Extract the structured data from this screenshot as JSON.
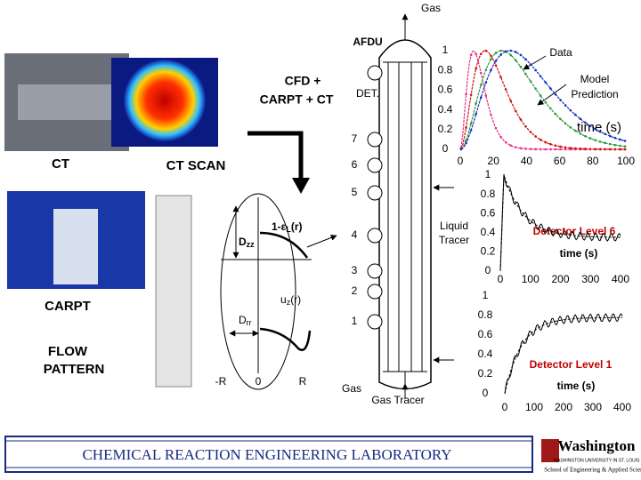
{
  "header": {
    "gas_top": "Gas",
    "afdu": "AFDU",
    "cfd": [
      "CFD +",
      "CARPT + CT"
    ],
    "det": "DET."
  },
  "left": {
    "ct": "CT",
    "ct_scan": "CT SCAN",
    "carpt": "CARPT",
    "flow_pattern": [
      "FLOW",
      "PATTERN"
    ]
  },
  "column": {
    "detectors": [
      "7",
      "6",
      "5",
      "4",
      "3",
      "2",
      "1"
    ],
    "liquid_tracer": [
      "Liquid",
      "Tracer"
    ],
    "gas_bottom": "Gas",
    "gas_tracer": "Gas Tracer"
  },
  "profile": {
    "holdup": [
      "1-ε",
      "L",
      "(r)"
    ],
    "dzz": [
      "D",
      "zz"
    ],
    "uz": [
      "u",
      "z",
      "(r)"
    ],
    "drr": [
      "D",
      "rr"
    ],
    "axis": [
      "-R",
      "0",
      "R"
    ]
  },
  "response_chart": {
    "data": "Data",
    "model": [
      "Model",
      "Prediction"
    ],
    "time": "time (s)",
    "yticks": [
      "1",
      "0.8",
      "0.6",
      "0.4",
      "0.2",
      "0"
    ],
    "xticks": [
      "0",
      "20",
      "40",
      "60",
      "80",
      "100"
    ]
  },
  "detector6": {
    "label": "Detector Level 6",
    "time": "time (s)",
    "yticks": [
      "1",
      "0.8",
      "0.6",
      "0.4",
      "0.2",
      "0"
    ],
    "xticks": [
      "0",
      "100",
      "200",
      "300",
      "400"
    ]
  },
  "detector1": {
    "label": "Detector Level 1",
    "time": "time (s)",
    "yticks": [
      "1",
      "0.8",
      "0.6",
      "0.4",
      "0.2",
      "0"
    ],
    "xticks": [
      "0",
      "100",
      "200",
      "300",
      "400"
    ]
  },
  "footer": {
    "lab": "CHEMICAL  REACTION  ENGINEERING  LABORATORY",
    "logo": "Washington",
    "univ": "WASHINGTON UNIVERSITY IN ST. LOUIS",
    "school": "School of Engineering & Applied Science"
  }
}
